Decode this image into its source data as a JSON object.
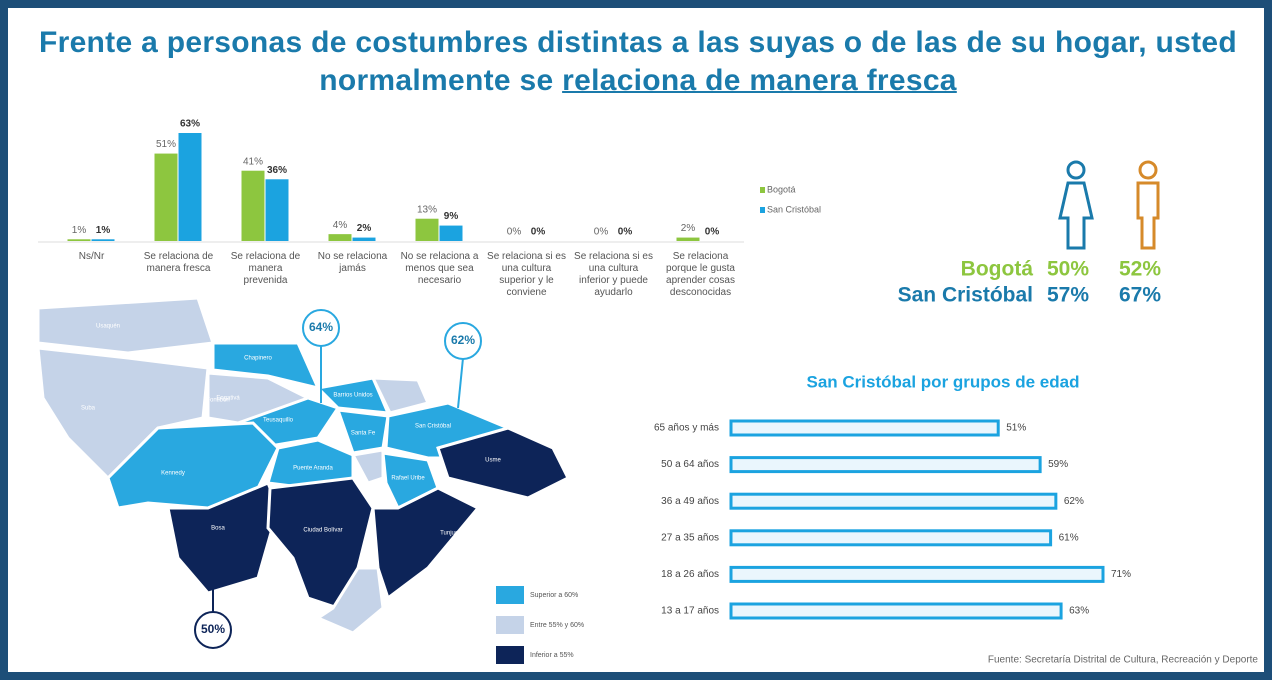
{
  "title_parts": [
    "Frente a personas de costumbres distintas a las suyas o de las de su hogar, usted normalmente se ",
    "relaciona de manera fresca"
  ],
  "chart_data": [
    {
      "type": "bar",
      "categories": [
        "Ns/Nr",
        "Se relaciona de manera fresca",
        "Se relaciona de manera prevenida",
        "No se relaciona jamás",
        "No se relaciona a menos que sea necesario",
        "Se relaciona si es una cultura superior y le conviene",
        "Se relaciona si es una cultura inferior y puede ayudarlo",
        "Se relaciona porque le gusta aprender cosas desconocidas"
      ],
      "series": [
        {
          "name": "Bogotá",
          "color": "#8dc63f",
          "values": [
            1,
            51,
            41,
            4,
            13,
            0,
            0,
            2
          ],
          "value_labels": [
            "1%",
            "51%",
            "41%",
            "4%",
            "13%",
            "0%",
            "0%",
            "2%"
          ]
        },
        {
          "name": "San Cristóbal",
          "color": "#1ba3e0",
          "values": [
            1,
            63,
            36,
            2,
            9,
            0,
            0,
            0
          ],
          "value_labels": [
            "1%",
            "63%",
            "36%",
            "2%",
            "9%",
            "0%",
            "0%",
            "0%"
          ]
        }
      ]
    },
    {
      "type": "hbar",
      "title": "San Cristóbal por grupos de edad",
      "categories": [
        "65 años y más",
        "50 a 64 años",
        "36 a 49 años",
        "27 a 35 años",
        "18 a 26 años",
        "13 a 17 años"
      ],
      "values": [
        51,
        59,
        62,
        61,
        71,
        63
      ],
      "value_labels": [
        "51%",
        "59%",
        "62%",
        "61%",
        "71%",
        "63%"
      ],
      "color": "#1ba3e0"
    }
  ],
  "gender": [
    {
      "name": "Bogotá",
      "color": "#8dc63f",
      "values": [
        "50%",
        "52%"
      ]
    },
    {
      "name": "San Cristóbal",
      "color": "#1a7aab",
      "values": [
        "57%",
        "67%"
      ]
    }
  ],
  "map": {
    "localities": [
      "Usaquén",
      "Suba",
      "Engativá",
      "Chapinero",
      "Barrios Unidos",
      "Teusaquillo",
      "Fontibón",
      "Kennedy",
      "Puente Aranda",
      "Santa Fe",
      "San Cristóbal",
      "Rafael Uribe",
      "Usme",
      "Bosa",
      "Ciudad Bolívar",
      "Tunjuelito"
    ],
    "callouts": [
      "64%",
      "62%",
      "50%"
    ],
    "legend": [
      "Superior a 60%",
      "Entre 55% y 60%",
      "Inferior a 55%"
    ]
  },
  "source": "Fuente: Secretaría Distrital de Cultura, Recreación y Deporte"
}
